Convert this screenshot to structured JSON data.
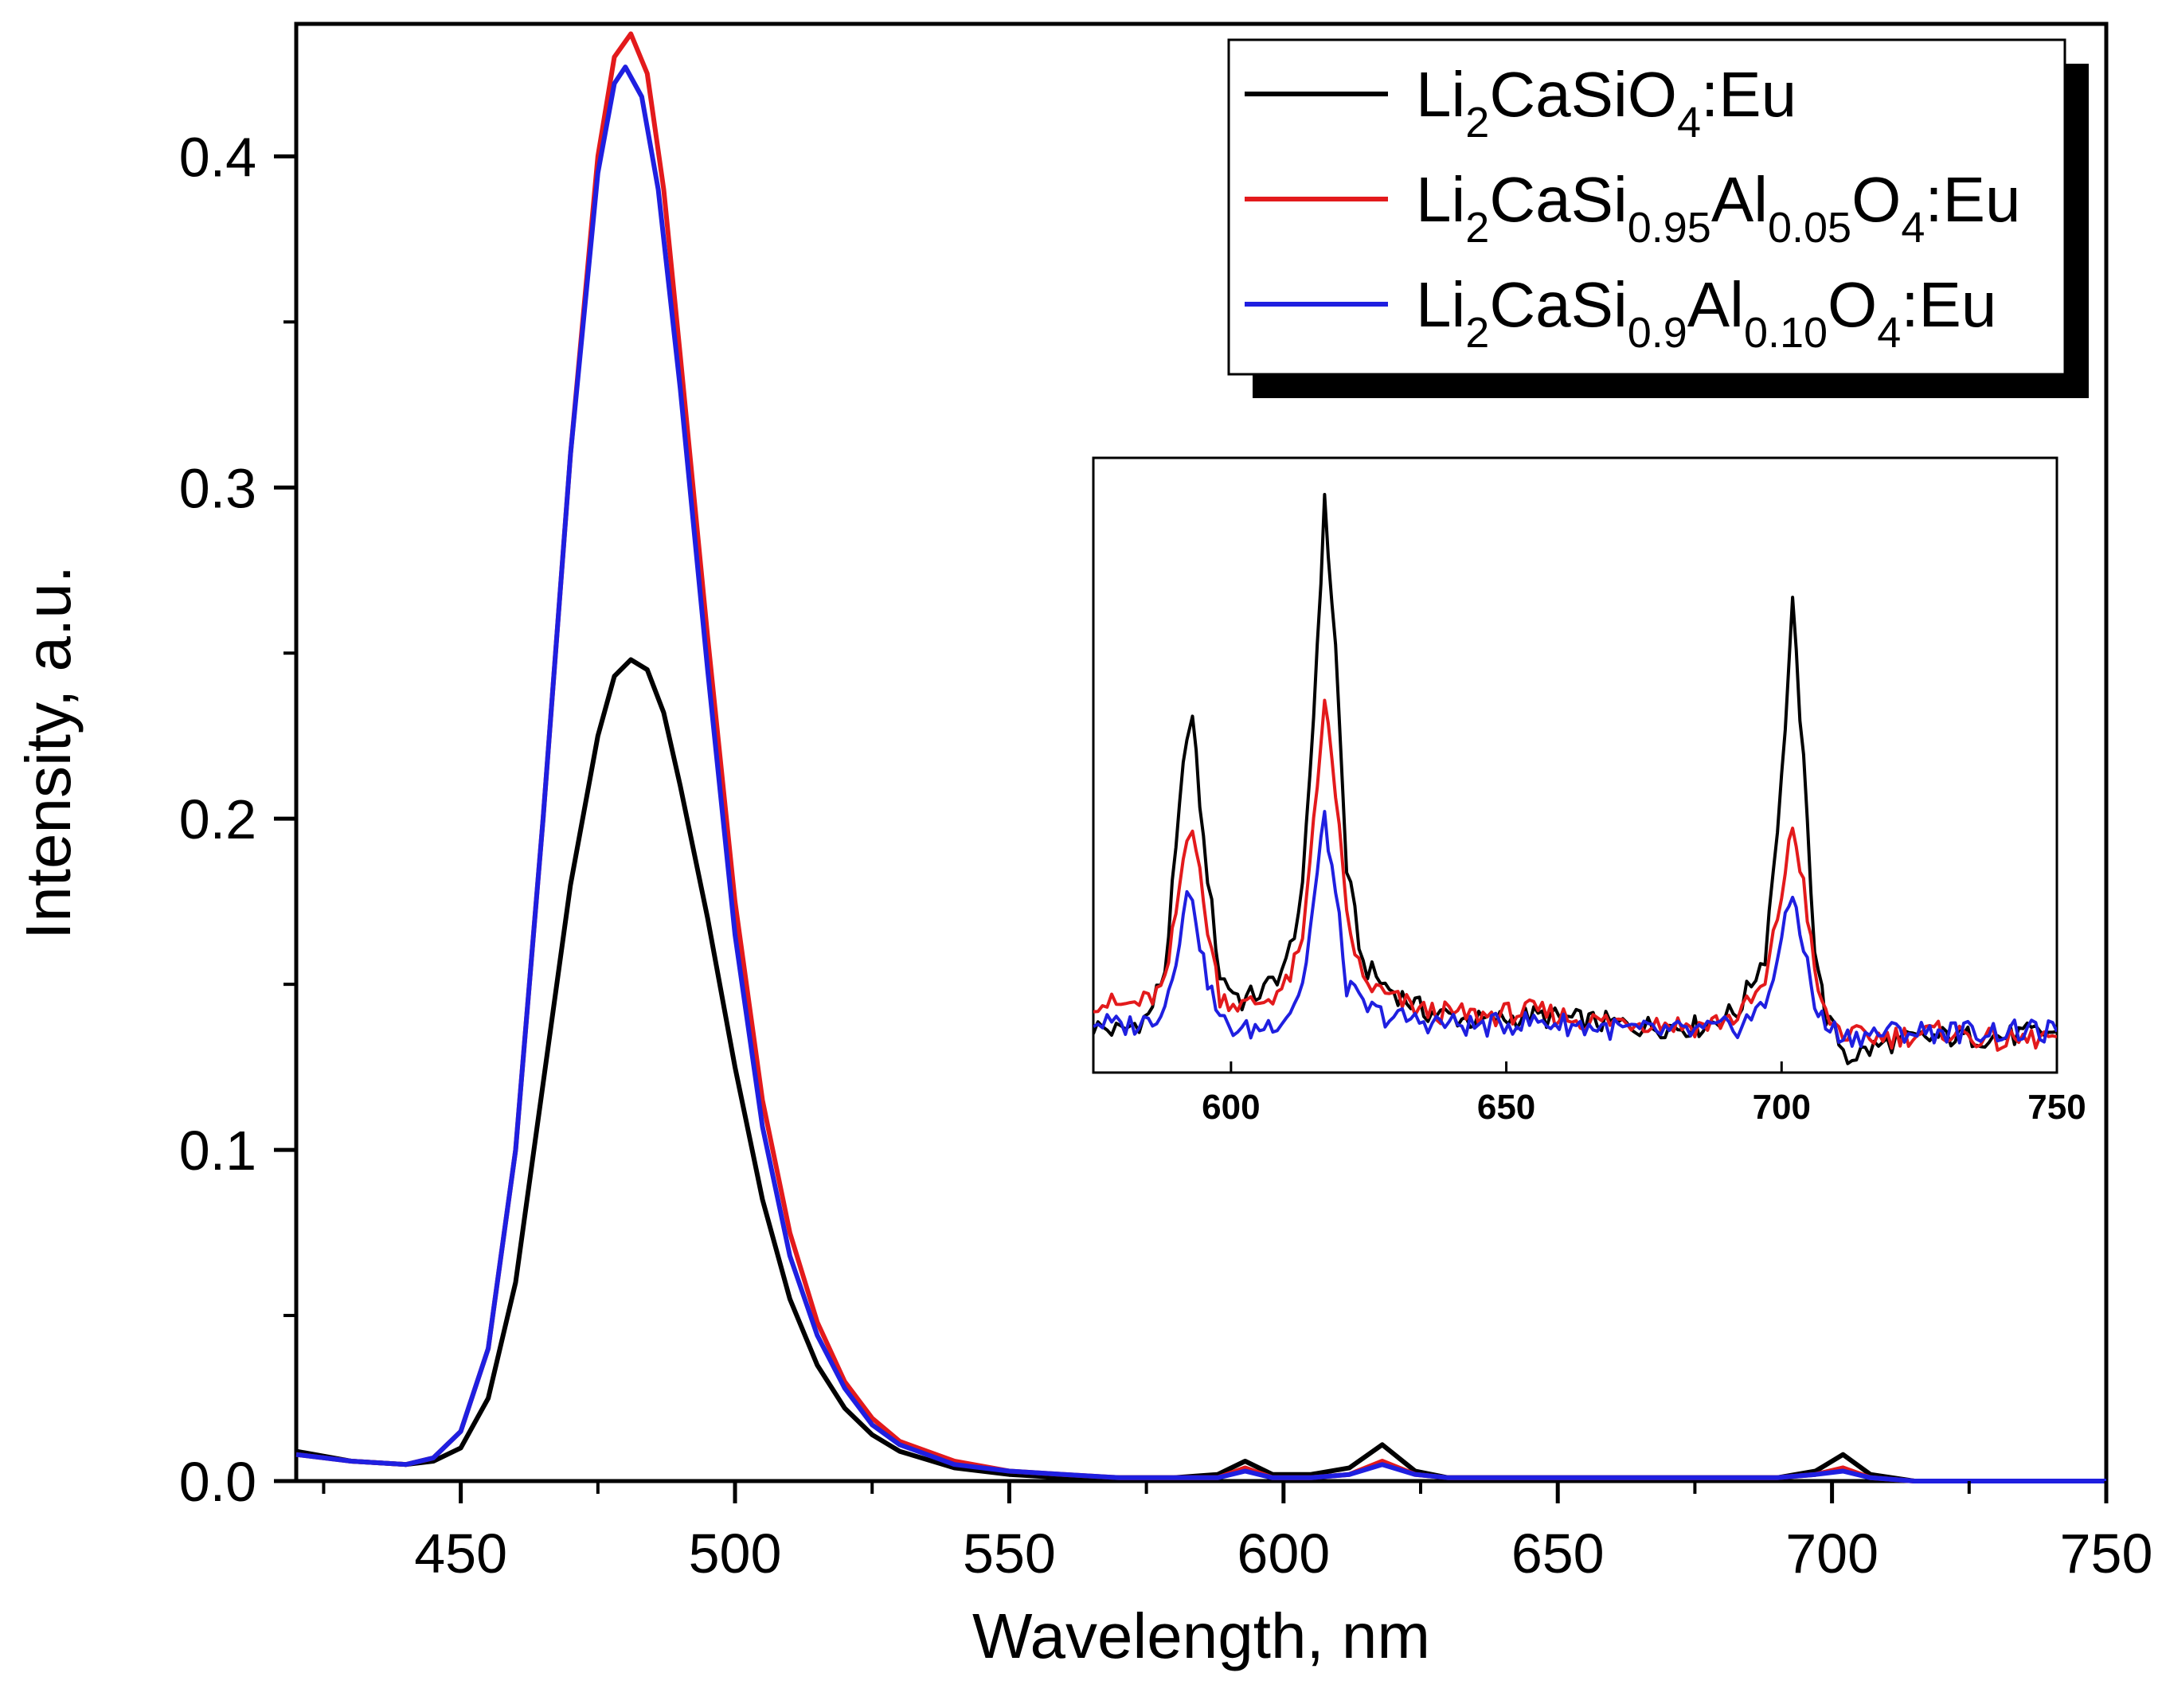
{
  "chart_data": [
    {
      "id": "main",
      "type": "line",
      "title": "",
      "xlabel": "Wavelength, nm",
      "ylabel": "Intensity, a.u.",
      "xlim": [
        420,
        750
      ],
      "ylim": [
        0.0,
        0.44
      ],
      "x_ticks": [
        450,
        500,
        550,
        600,
        650,
        700,
        750
      ],
      "x_minor_ticks": [
        425,
        475,
        525,
        575,
        625,
        675,
        725
      ],
      "y_ticks": [
        0.0,
        0.1,
        0.2,
        0.3,
        0.4
      ],
      "y_tick_labels": [
        "0.0",
        "0.1",
        "0.2",
        "0.3",
        "0.4"
      ],
      "y_minor_ticks": [
        0.05,
        0.15,
        0.25,
        0.35
      ],
      "grid": false,
      "series": [
        {
          "name": "Li2CaSiO4:Eu",
          "color": "#000000",
          "x": [
            420,
            430,
            440,
            445,
            450,
            455,
            460,
            465,
            470,
            475,
            478,
            481,
            484,
            487,
            490,
            495,
            500,
            505,
            510,
            515,
            520,
            525,
            530,
            540,
            550,
            560,
            570,
            580,
            588,
            593,
            598,
            605,
            612,
            618,
            624,
            630,
            660,
            690,
            697,
            702,
            707,
            715,
            750
          ],
          "y": [
            0.009,
            0.006,
            0.005,
            0.006,
            0.01,
            0.025,
            0.06,
            0.12,
            0.18,
            0.225,
            0.243,
            0.248,
            0.245,
            0.232,
            0.21,
            0.17,
            0.125,
            0.085,
            0.055,
            0.035,
            0.022,
            0.014,
            0.009,
            0.004,
            0.002,
            0.001,
            0.001,
            0.001,
            0.002,
            0.006,
            0.002,
            0.002,
            0.004,
            0.011,
            0.003,
            0.001,
            0.001,
            0.001,
            0.003,
            0.008,
            0.002,
            0.0,
            0.0
          ]
        },
        {
          "name": "Li2CaSi0.95Al0.05O4:Eu",
          "color": "#e31a1c",
          "x": [
            420,
            430,
            440,
            445,
            450,
            455,
            460,
            465,
            470,
            475,
            478,
            481,
            484,
            487,
            490,
            495,
            500,
            505,
            510,
            515,
            520,
            525,
            530,
            540,
            550,
            560,
            570,
            580,
            588,
            593,
            598,
            605,
            612,
            618,
            624,
            630,
            660,
            690,
            697,
            702,
            707,
            715,
            750
          ],
          "y": [
            0.008,
            0.006,
            0.005,
            0.007,
            0.015,
            0.04,
            0.1,
            0.2,
            0.31,
            0.4,
            0.43,
            0.437,
            0.425,
            0.39,
            0.34,
            0.255,
            0.175,
            0.115,
            0.075,
            0.048,
            0.03,
            0.019,
            0.012,
            0.006,
            0.003,
            0.002,
            0.001,
            0.001,
            0.001,
            0.004,
            0.001,
            0.001,
            0.002,
            0.006,
            0.002,
            0.001,
            0.001,
            0.001,
            0.002,
            0.004,
            0.001,
            0.0,
            0.0
          ]
        },
        {
          "name": "Li2CaSi0.9Al0.10O4:Eu",
          "color": "#1f1fe0",
          "x": [
            420,
            430,
            440,
            445,
            450,
            455,
            460,
            465,
            470,
            475,
            478,
            480,
            483,
            486,
            490,
            495,
            500,
            505,
            510,
            515,
            520,
            525,
            530,
            540,
            550,
            560,
            570,
            580,
            588,
            593,
            598,
            605,
            612,
            618,
            624,
            630,
            660,
            690,
            697,
            702,
            707,
            715,
            750
          ],
          "y": [
            0.008,
            0.006,
            0.005,
            0.007,
            0.015,
            0.04,
            0.1,
            0.2,
            0.31,
            0.395,
            0.422,
            0.427,
            0.418,
            0.39,
            0.33,
            0.245,
            0.165,
            0.107,
            0.068,
            0.044,
            0.028,
            0.017,
            0.011,
            0.005,
            0.003,
            0.002,
            0.001,
            0.001,
            0.001,
            0.003,
            0.001,
            0.001,
            0.002,
            0.005,
            0.002,
            0.001,
            0.001,
            0.001,
            0.002,
            0.003,
            0.001,
            0.0,
            0.0
          ]
        }
      ],
      "legend": {
        "placement": "top-right",
        "entries": [
          {
            "parts": [
              {
                "t": "Li"
              },
              {
                "t": "2",
                "sub": true
              },
              {
                "t": "CaSiO"
              },
              {
                "t": "4",
                "sub": true
              },
              {
                "t": ":Eu"
              }
            ]
          },
          {
            "parts": [
              {
                "t": "Li"
              },
              {
                "t": "2",
                "sub": true
              },
              {
                "t": "CaSi"
              },
              {
                "t": "0.95",
                "sub": true
              },
              {
                "t": "Al"
              },
              {
                "t": "0.05",
                "sub": true
              },
              {
                "t": "O"
              },
              {
                "t": "4",
                "sub": true
              },
              {
                "t": ":Eu"
              }
            ]
          },
          {
            "parts": [
              {
                "t": "Li"
              },
              {
                "t": "2",
                "sub": true
              },
              {
                "t": "CaSi"
              },
              {
                "t": "0.9",
                "sub": true
              },
              {
                "t": "Al"
              },
              {
                "t": "0.10",
                "sub": true
              },
              {
                "t": "O"
              },
              {
                "t": "4",
                "sub": true
              },
              {
                "t": ":Eu"
              }
            ]
          }
        ]
      }
    },
    {
      "id": "inset",
      "type": "line",
      "title": "",
      "xlabel": "",
      "ylabel": "",
      "xlim": [
        575,
        750
      ],
      "ylim": [
        -0.0005,
        0.0115
      ],
      "x_ticks": [
        600,
        650,
        700,
        750
      ],
      "y_ticks": [],
      "grid": false,
      "series": [
        {
          "name": "Li2CaSiO4:Eu",
          "color": "#000000",
          "x": [
            575,
            580,
            585,
            588,
            590,
            592,
            593,
            595,
            598,
            602,
            606,
            610,
            613,
            615,
            617,
            619,
            621,
            624,
            628,
            635,
            645,
            655,
            665,
            675,
            685,
            692,
            697,
            700,
            702,
            704,
            706,
            708,
            712,
            720,
            730,
            740,
            750
          ],
          "y": [
            0.0004,
            0.0003,
            0.0006,
            0.0015,
            0.0038,
            0.0062,
            0.0064,
            0.004,
            0.0014,
            0.0009,
            0.0011,
            0.0016,
            0.003,
            0.0065,
            0.0106,
            0.0078,
            0.0035,
            0.0016,
            0.0012,
            0.0007,
            0.0005,
            0.0006,
            0.0005,
            0.0004,
            0.0004,
            0.0007,
            0.0018,
            0.0052,
            0.0086,
            0.0055,
            0.002,
            0.0006,
            -0.0002,
            0.0001,
            0.0002,
            0.0002,
            0.0003
          ]
        },
        {
          "name": "Li2CaSi0.95Al0.05O4:Eu",
          "color": "#e31a1c",
          "x": [
            575,
            580,
            585,
            588,
            590,
            592,
            593,
            595,
            598,
            602,
            606,
            610,
            613,
            615,
            617,
            619,
            621,
            624,
            628,
            635,
            645,
            655,
            665,
            675,
            685,
            692,
            697,
            700,
            702,
            704,
            706,
            708,
            712,
            720,
            730,
            740,
            750
          ],
          "y": [
            0.0009,
            0.0008,
            0.0009,
            0.0012,
            0.0026,
            0.0042,
            0.0044,
            0.0028,
            0.001,
            0.0008,
            0.0009,
            0.0012,
            0.002,
            0.0045,
            0.0067,
            0.005,
            0.0025,
            0.0013,
            0.001,
            0.0007,
            0.0006,
            0.0007,
            0.0005,
            0.0005,
            0.0004,
            0.0006,
            0.0012,
            0.003,
            0.0043,
            0.0032,
            0.0014,
            0.0006,
            0.0002,
            0.0002,
            0.0003,
            0.0001,
            0.0002
          ]
        },
        {
          "name": "Li2CaSi0.9Al0.10O4:Eu",
          "color": "#1f1fe0",
          "x": [
            575,
            580,
            585,
            588,
            590,
            592,
            593,
            595,
            598,
            602,
            606,
            610,
            613,
            615,
            617,
            619,
            621,
            624,
            628,
            635,
            645,
            655,
            665,
            675,
            685,
            692,
            697,
            700,
            702,
            704,
            706,
            708,
            712,
            720,
            730,
            740,
            750
          ],
          "y": [
            0.0005,
            0.0004,
            0.0005,
            0.0008,
            0.0018,
            0.0029,
            0.003,
            0.0016,
            0.0005,
            0.0003,
            0.0004,
            0.0006,
            0.0012,
            0.0028,
            0.0045,
            0.003,
            0.0012,
            0.0008,
            0.0006,
            0.0005,
            0.0004,
            0.0005,
            0.0004,
            0.0003,
            0.0003,
            0.0004,
            0.0008,
            0.0021,
            0.003,
            0.002,
            0.0008,
            0.0004,
            0.0002,
            0.0003,
            0.0003,
            0.0003,
            0.0003
          ]
        }
      ]
    }
  ]
}
